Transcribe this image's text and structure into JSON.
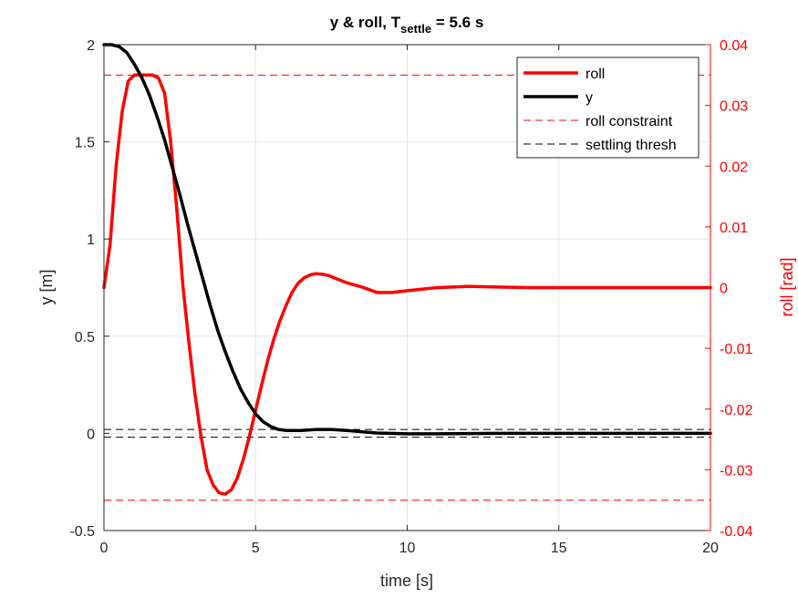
{
  "chart_data": {
    "type": "line",
    "title": {
      "main": "y & roll, T",
      "subscript": "settle",
      "suffix": " = 5.6 s"
    },
    "xlabel": "time [s]",
    "ylabel_left": "y [m]",
    "ylabel_right": "roll [rad]",
    "xlim": [
      0,
      20
    ],
    "ylim_left": [
      -0.5,
      2
    ],
    "ylim_right": [
      -0.04,
      0.04
    ],
    "x_ticks": [
      0,
      5,
      10,
      15,
      20
    ],
    "x_tick_labels": [
      "0",
      "5",
      "10",
      "15",
      "20"
    ],
    "y_left_ticks": [
      -0.5,
      0,
      0.5,
      1,
      1.5,
      2
    ],
    "y_left_tick_labels": [
      "-0.5",
      "0",
      "0.5",
      "1",
      "1.5",
      "2"
    ],
    "y_right_ticks": [
      -0.04,
      -0.03,
      -0.02,
      -0.01,
      0,
      0.01,
      0.02,
      0.03,
      0.04
    ],
    "y_right_tick_labels": [
      "-0.04",
      "-0.03",
      "-0.02",
      "-0.01",
      "0",
      "0.01",
      "0.02",
      "0.03",
      "0.04"
    ],
    "grid": true,
    "legend_position": "top-right",
    "series": [
      {
        "name": "roll",
        "axis": "right",
        "color": "#ff0000",
        "style": "solid",
        "x": [
          0,
          0.2,
          0.4,
          0.6,
          0.8,
          1.0,
          1.2,
          1.4,
          1.6,
          1.8,
          2.0,
          2.2,
          2.4,
          2.6,
          2.8,
          3.0,
          3.2,
          3.4,
          3.6,
          3.8,
          4.0,
          4.2,
          4.4,
          4.6,
          4.8,
          5.0,
          5.2,
          5.4,
          5.6,
          5.8,
          6.0,
          6.2,
          6.4,
          6.6,
          6.8,
          7.0,
          7.2,
          7.4,
          7.6,
          7.8,
          8.0,
          8.5,
          9.0,
          9.5,
          10.0,
          11.0,
          12.0,
          13.0,
          14.0,
          15.0,
          16.0,
          17.0,
          18.0,
          19.0,
          20.0
        ],
        "values": [
          0,
          0.007,
          0.02,
          0.029,
          0.034,
          0.035,
          0.035,
          0.035,
          0.035,
          0.0345,
          0.032,
          0.024,
          0.013,
          0.0005,
          -0.009,
          -0.0175,
          -0.0245,
          -0.03,
          -0.0325,
          -0.0338,
          -0.034,
          -0.0333,
          -0.0313,
          -0.0282,
          -0.0244,
          -0.0202,
          -0.016,
          -0.012,
          -0.0085,
          -0.0055,
          -0.003,
          -0.0008,
          0.0007,
          0.0016,
          0.0021,
          0.0023,
          0.0022,
          0.002,
          0.0016,
          0.0012,
          0.0008,
          0.0001,
          -0.0008,
          -0.0008,
          -0.0005,
          0,
          0.0002,
          0.0001,
          0,
          0,
          0,
          0,
          0,
          0,
          0
        ]
      },
      {
        "name": "y",
        "axis": "left",
        "color": "#000000",
        "style": "solid",
        "x": [
          0,
          0.25,
          0.5,
          0.75,
          1.0,
          1.25,
          1.5,
          1.75,
          2.0,
          2.25,
          2.5,
          2.75,
          3.0,
          3.25,
          3.5,
          3.75,
          4.0,
          4.25,
          4.5,
          4.75,
          5.0,
          5.25,
          5.5,
          5.75,
          6.0,
          6.5,
          7.0,
          7.5,
          8.0,
          8.5,
          9.0,
          10.0,
          11.0,
          12.0,
          13.0,
          14.0,
          15.0,
          16.0,
          17.0,
          18.0,
          19.0,
          20.0
        ],
        "values": [
          2,
          2,
          1.99,
          1.96,
          1.9,
          1.83,
          1.74,
          1.63,
          1.51,
          1.37,
          1.23,
          1.08,
          0.94,
          0.8,
          0.66,
          0.53,
          0.42,
          0.32,
          0.23,
          0.16,
          0.1,
          0.06,
          0.035,
          0.02,
          0.015,
          0.015,
          0.02,
          0.02,
          0.015,
          0.008,
          0.002,
          -0.002,
          -0.002,
          -0.001,
          0,
          0,
          0,
          0,
          0,
          0,
          0,
          0
        ]
      },
      {
        "name": "roll constraint",
        "axis": "right",
        "color": "#ff0000",
        "style": "dashed",
        "levels": [
          0.035,
          -0.035
        ]
      },
      {
        "name": "settling thresh",
        "axis": "left",
        "color": "#000000",
        "style": "dashed",
        "levels": [
          0.02,
          -0.02
        ]
      }
    ]
  }
}
